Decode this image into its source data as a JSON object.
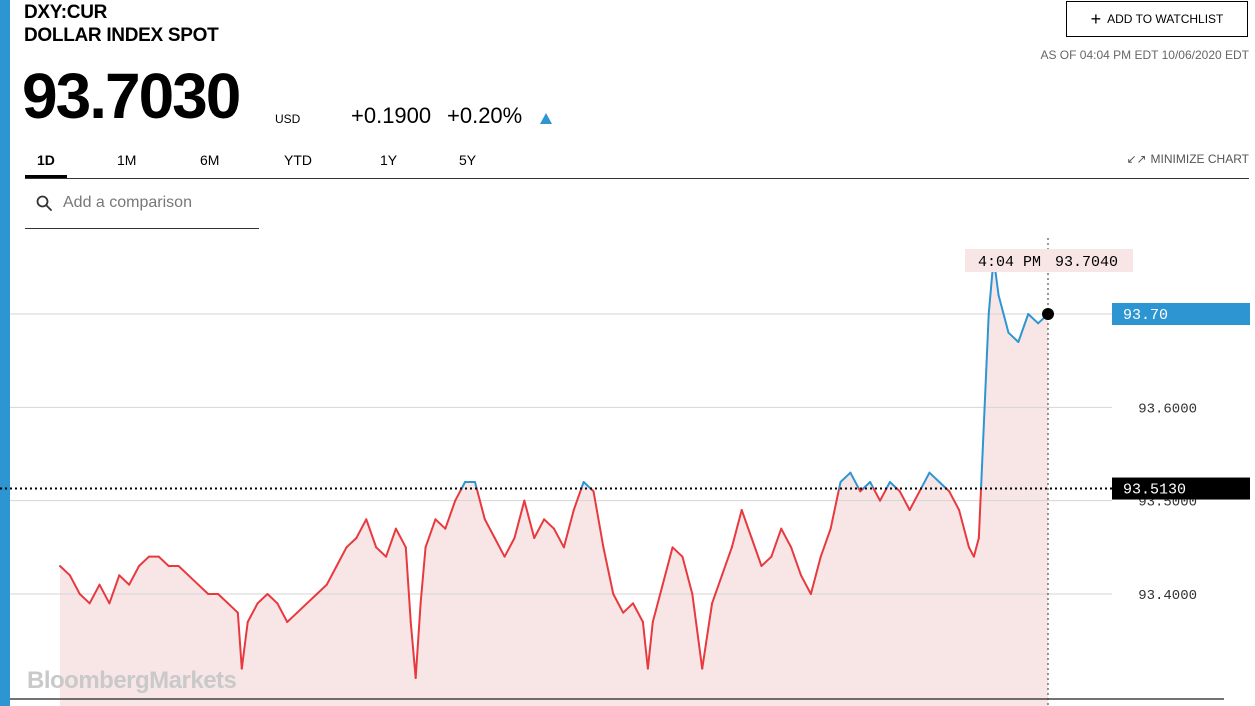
{
  "header": {
    "ticker": "DXY:CUR",
    "name": "DOLLAR INDEX SPOT",
    "price": "93.7030",
    "currency": "USD",
    "change": "+0.1900",
    "change_pct": "+0.20%",
    "change_direction_icon": "up-triangle-icon",
    "watchlist_label": "ADD TO WATCHLIST",
    "as_of": "AS OF 04:04 PM EDT 10/06/2020 EDT"
  },
  "tabs": [
    {
      "label": "1D",
      "active": true
    },
    {
      "label": "1M",
      "active": false
    },
    {
      "label": "6M",
      "active": false
    },
    {
      "label": "YTD",
      "active": false
    },
    {
      "label": "1Y",
      "active": false
    },
    {
      "label": "5Y",
      "active": false
    }
  ],
  "minimize_label": "MINIMIZE CHART",
  "search": {
    "placeholder": "Add a comparison"
  },
  "watermark": "BloombergMarkets",
  "colors": {
    "accent": "#2e95d3",
    "above_previous_close": "#2e95d3",
    "below_previous_close": "#e8393f",
    "fill": "#f8e6e7",
    "previous_close_label_bg": "#000000"
  },
  "chart_data": {
    "type": "line",
    "title": "",
    "xlabel": "",
    "ylabel": "",
    "ylim": [
      93.28,
      93.79
    ],
    "previous_close": 93.513,
    "previous_close_label": "93.5130",
    "current_label": "93.70",
    "crosshair_time": "4:04 PM",
    "crosshair_value": "93.7040",
    "y_ticks": [
      {
        "value": 93.6,
        "label": "93.6000"
      },
      {
        "value": 93.5,
        "label": "93.5000"
      },
      {
        "value": 93.4,
        "label": "93.4000"
      }
    ],
    "grid": true,
    "x_range": [
      0,
      100
    ],
    "x": [
      0,
      1,
      2,
      3,
      4,
      5,
      6,
      7,
      8,
      9,
      10,
      11,
      12,
      13,
      14,
      15,
      16,
      17,
      18,
      18.4,
      19,
      20,
      21,
      22,
      23,
      24,
      25,
      26,
      27,
      28,
      29,
      30,
      31,
      32,
      33,
      34,
      35,
      35.5,
      36,
      36.5,
      37,
      38,
      39,
      40,
      40.5,
      41,
      42,
      43,
      44,
      45,
      46,
      47,
      48,
      49,
      50,
      51,
      52,
      53,
      54,
      55,
      56,
      57,
      58,
      59,
      59.5,
      60,
      61,
      62,
      63,
      64,
      65,
      66,
      67,
      68,
      69,
      70,
      71,
      72,
      73,
      74,
      75,
      76,
      77,
      78,
      79,
      80,
      81,
      82,
      83,
      84,
      85,
      86,
      87,
      88,
      89,
      90,
      91,
      92,
      92.5,
      93,
      94,
      94.5,
      95,
      96,
      97,
      98,
      99,
      100
    ],
    "values": [
      93.43,
      93.42,
      93.4,
      93.39,
      93.41,
      93.39,
      93.42,
      93.41,
      93.43,
      93.44,
      93.44,
      93.43,
      93.43,
      93.42,
      93.41,
      93.4,
      93.4,
      93.39,
      93.38,
      93.32,
      93.37,
      93.39,
      93.4,
      93.39,
      93.37,
      93.38,
      93.39,
      93.4,
      93.41,
      93.43,
      93.45,
      93.46,
      93.48,
      93.45,
      93.44,
      93.47,
      93.45,
      93.37,
      93.31,
      93.39,
      93.45,
      93.48,
      93.47,
      93.5,
      93.51,
      93.52,
      93.52,
      93.48,
      93.46,
      93.44,
      93.46,
      93.5,
      93.46,
      93.48,
      93.47,
      93.45,
      93.49,
      93.52,
      93.51,
      93.45,
      93.4,
      93.38,
      93.39,
      93.37,
      93.32,
      93.37,
      93.41,
      93.45,
      93.44,
      93.4,
      93.32,
      93.39,
      93.42,
      93.45,
      93.49,
      93.46,
      93.43,
      93.44,
      93.47,
      93.45,
      93.42,
      93.4,
      93.44,
      93.47,
      93.52,
      93.53,
      93.51,
      93.52,
      93.5,
      93.52,
      93.51,
      93.49,
      93.51,
      93.53,
      93.52,
      93.51,
      93.49,
      93.45,
      93.44,
      93.46,
      93.7,
      93.76,
      93.72,
      93.68,
      93.67,
      93.7,
      93.69,
      93.7
    ]
  }
}
